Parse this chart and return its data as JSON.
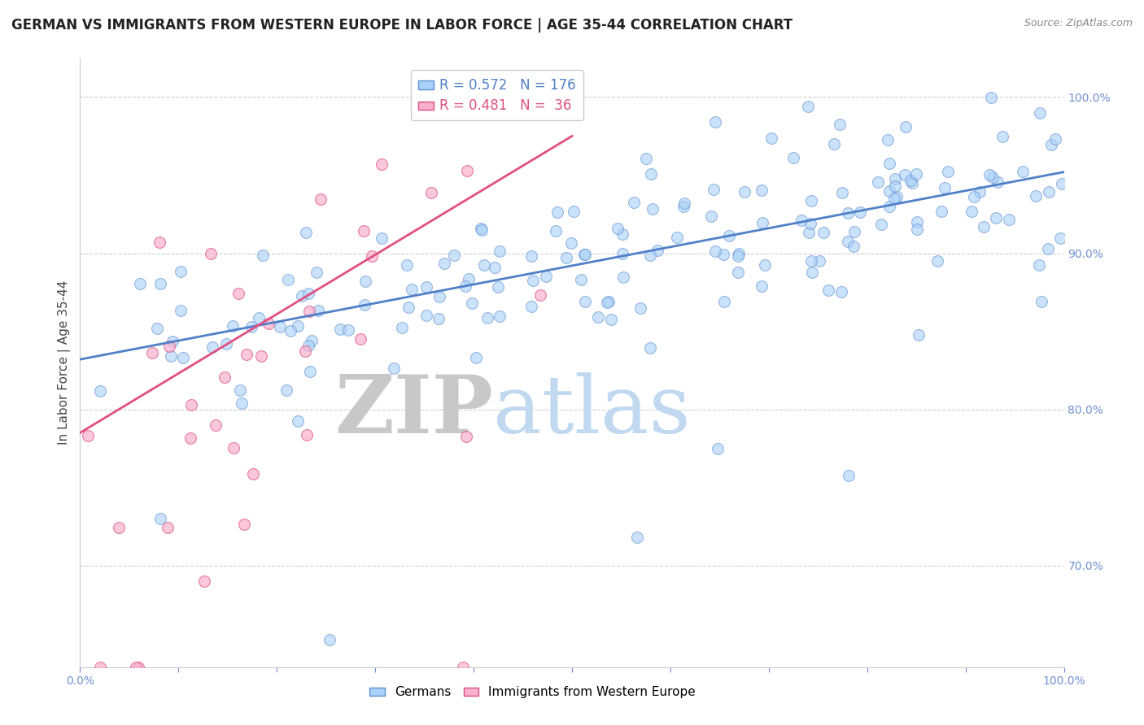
{
  "title": "GERMAN VS IMMIGRANTS FROM WESTERN EUROPE IN LABOR FORCE | AGE 35-44 CORRELATION CHART",
  "source_text": "Source: ZipAtlas.com",
  "ylabel": "In Labor Force | Age 35-44",
  "watermark_zip": "ZIP",
  "watermark_atlas": "atlas",
  "xlim": [
    0.0,
    1.0
  ],
  "ylim": [
    0.635,
    1.025
  ],
  "x_ticks": [
    0.0,
    0.1,
    0.2,
    0.3,
    0.4,
    0.5,
    0.6,
    0.7,
    0.8,
    0.9,
    1.0
  ],
  "x_tick_labels": [
    "0.0%",
    "",
    "",
    "",
    "",
    "",
    "",
    "",
    "",
    "",
    "100.0%"
  ],
  "y_ticks": [
    0.7,
    0.8,
    0.9,
    1.0
  ],
  "y_tick_labels": [
    "70.0%",
    "80.0%",
    "90.0%",
    "100.0%"
  ],
  "legend_items": [
    {
      "label": "R = 0.572   N = 176",
      "color": "#a8cef0"
    },
    {
      "label": "R = 0.481   N =  36",
      "color": "#f8a0c0"
    }
  ],
  "series_german": {
    "color": "#a8d0f8",
    "edge_color": "#6090d0",
    "line_color": "#5080c8",
    "R": 0.572,
    "N": 176,
    "slope": 0.12,
    "intercept": 0.832
  },
  "series_immigrant": {
    "color": "#f8b0cc",
    "edge_color": "#e05080",
    "line_color": "#e05080",
    "R": 0.481,
    "N": 36,
    "slope": 0.38,
    "intercept": 0.785
  },
  "background_color": "#ffffff",
  "grid_color": "#d0d0d0",
  "title_color": "#222222",
  "axis_label_color": "#444444",
  "tick_color": "#7090d0",
  "watermark_color_zip": "#c8c8c8",
  "watermark_color_atlas": "#c0d8f0",
  "title_fontsize": 12,
  "axis_label_fontsize": 11,
  "tick_fontsize": 10,
  "legend_fontsize": 11,
  "watermark_fontsize_zip": 72,
  "watermark_fontsize_atlas": 72
}
